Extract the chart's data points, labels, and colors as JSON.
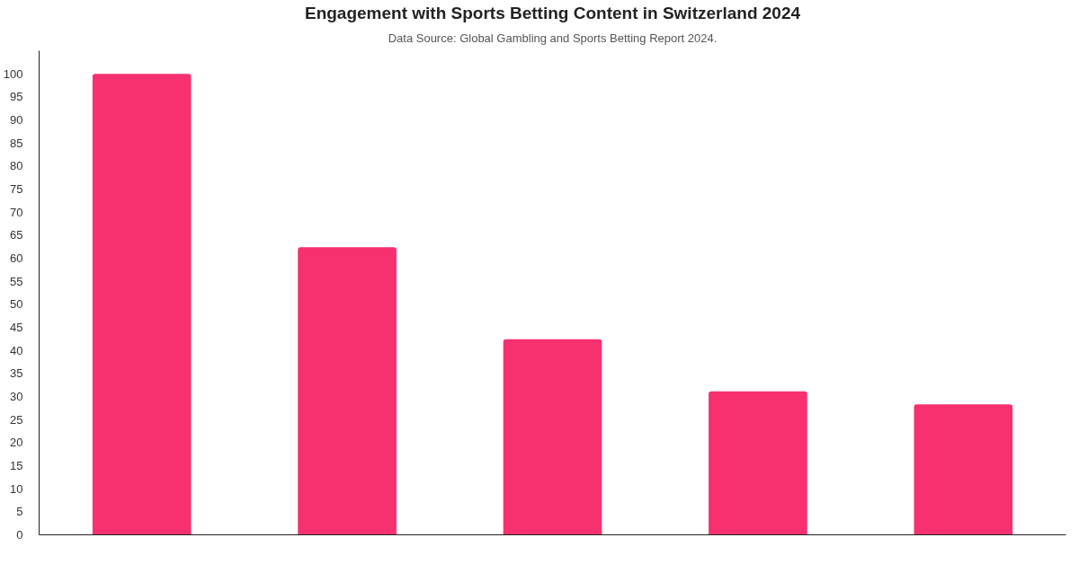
{
  "chart_data": {
    "type": "bar",
    "title": "Engagement with Sports Betting Content in Switzerland 2024",
    "subtitle": "Data Source: Global Gambling and Sports Betting Report 2024.",
    "categories": [
      null,
      null,
      null,
      null,
      null
    ],
    "values": [
      100,
      62.4,
      42.4,
      31.1,
      28.3
    ],
    "color": "#f7306f",
    "ylim": [
      0,
      105
    ],
    "yticks": [
      0,
      5,
      10,
      15,
      20,
      25,
      30,
      35,
      40,
      45,
      50,
      55,
      60,
      65,
      70,
      75,
      80,
      85,
      90,
      95,
      100
    ],
    "grid": false,
    "tick_labels": "y"
  }
}
